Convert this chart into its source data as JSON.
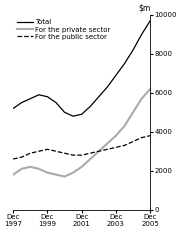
{
  "ylim": [
    0,
    10000
  ],
  "yticks": [
    0,
    2000,
    4000,
    6000,
    8000,
    10000
  ],
  "x_labels": [
    "Dec\n1997",
    "Dec\n1999",
    "Dec\n2001",
    "Dec\n2003",
    "Dec\n2005"
  ],
  "x_tick_positions": [
    0,
    2,
    4,
    6,
    8
  ],
  "legend": [
    {
      "label": "Total",
      "color": "#000000",
      "linestyle": "solid",
      "linewidth": 0.9
    },
    {
      "label": "For the private sector",
      "color": "#aaaaaa",
      "linestyle": "solid",
      "linewidth": 1.5
    },
    {
      "label": "For the public sector",
      "color": "#000000",
      "linestyle": "dashed",
      "linewidth": 0.9
    }
  ],
  "total_x": [
    0,
    0.5,
    1,
    1.5,
    2,
    2.5,
    3,
    3.5,
    4,
    4.5,
    5,
    5.5,
    6,
    6.5,
    7,
    7.5,
    8
  ],
  "total_y": [
    5200,
    5500,
    5700,
    5900,
    5800,
    5500,
    5000,
    4800,
    4900,
    5300,
    5800,
    6300,
    6900,
    7500,
    8200,
    9000,
    9700
  ],
  "private_x": [
    0,
    0.5,
    1,
    1.5,
    2,
    2.5,
    3,
    3.5,
    4,
    4.5,
    5,
    5.5,
    6,
    6.5,
    7,
    7.5,
    8
  ],
  "private_y": [
    1800,
    2100,
    2200,
    2100,
    1900,
    1800,
    1700,
    1900,
    2200,
    2600,
    3000,
    3400,
    3800,
    4300,
    5000,
    5700,
    6200
  ],
  "public_x": [
    0,
    0.5,
    1,
    1.5,
    2,
    2.5,
    3,
    3.5,
    4,
    4.5,
    5,
    5.5,
    6,
    6.5,
    7,
    7.5,
    8
  ],
  "public_y": [
    2600,
    2700,
    2900,
    3000,
    3100,
    3000,
    2900,
    2800,
    2800,
    2900,
    3000,
    3100,
    3200,
    3300,
    3500,
    3700,
    3800
  ],
  "background_color": "#ffffff",
  "legend_fontsize": 5.0,
  "tick_fontsize": 5.0,
  "ylabel_fontsize": 5.5
}
